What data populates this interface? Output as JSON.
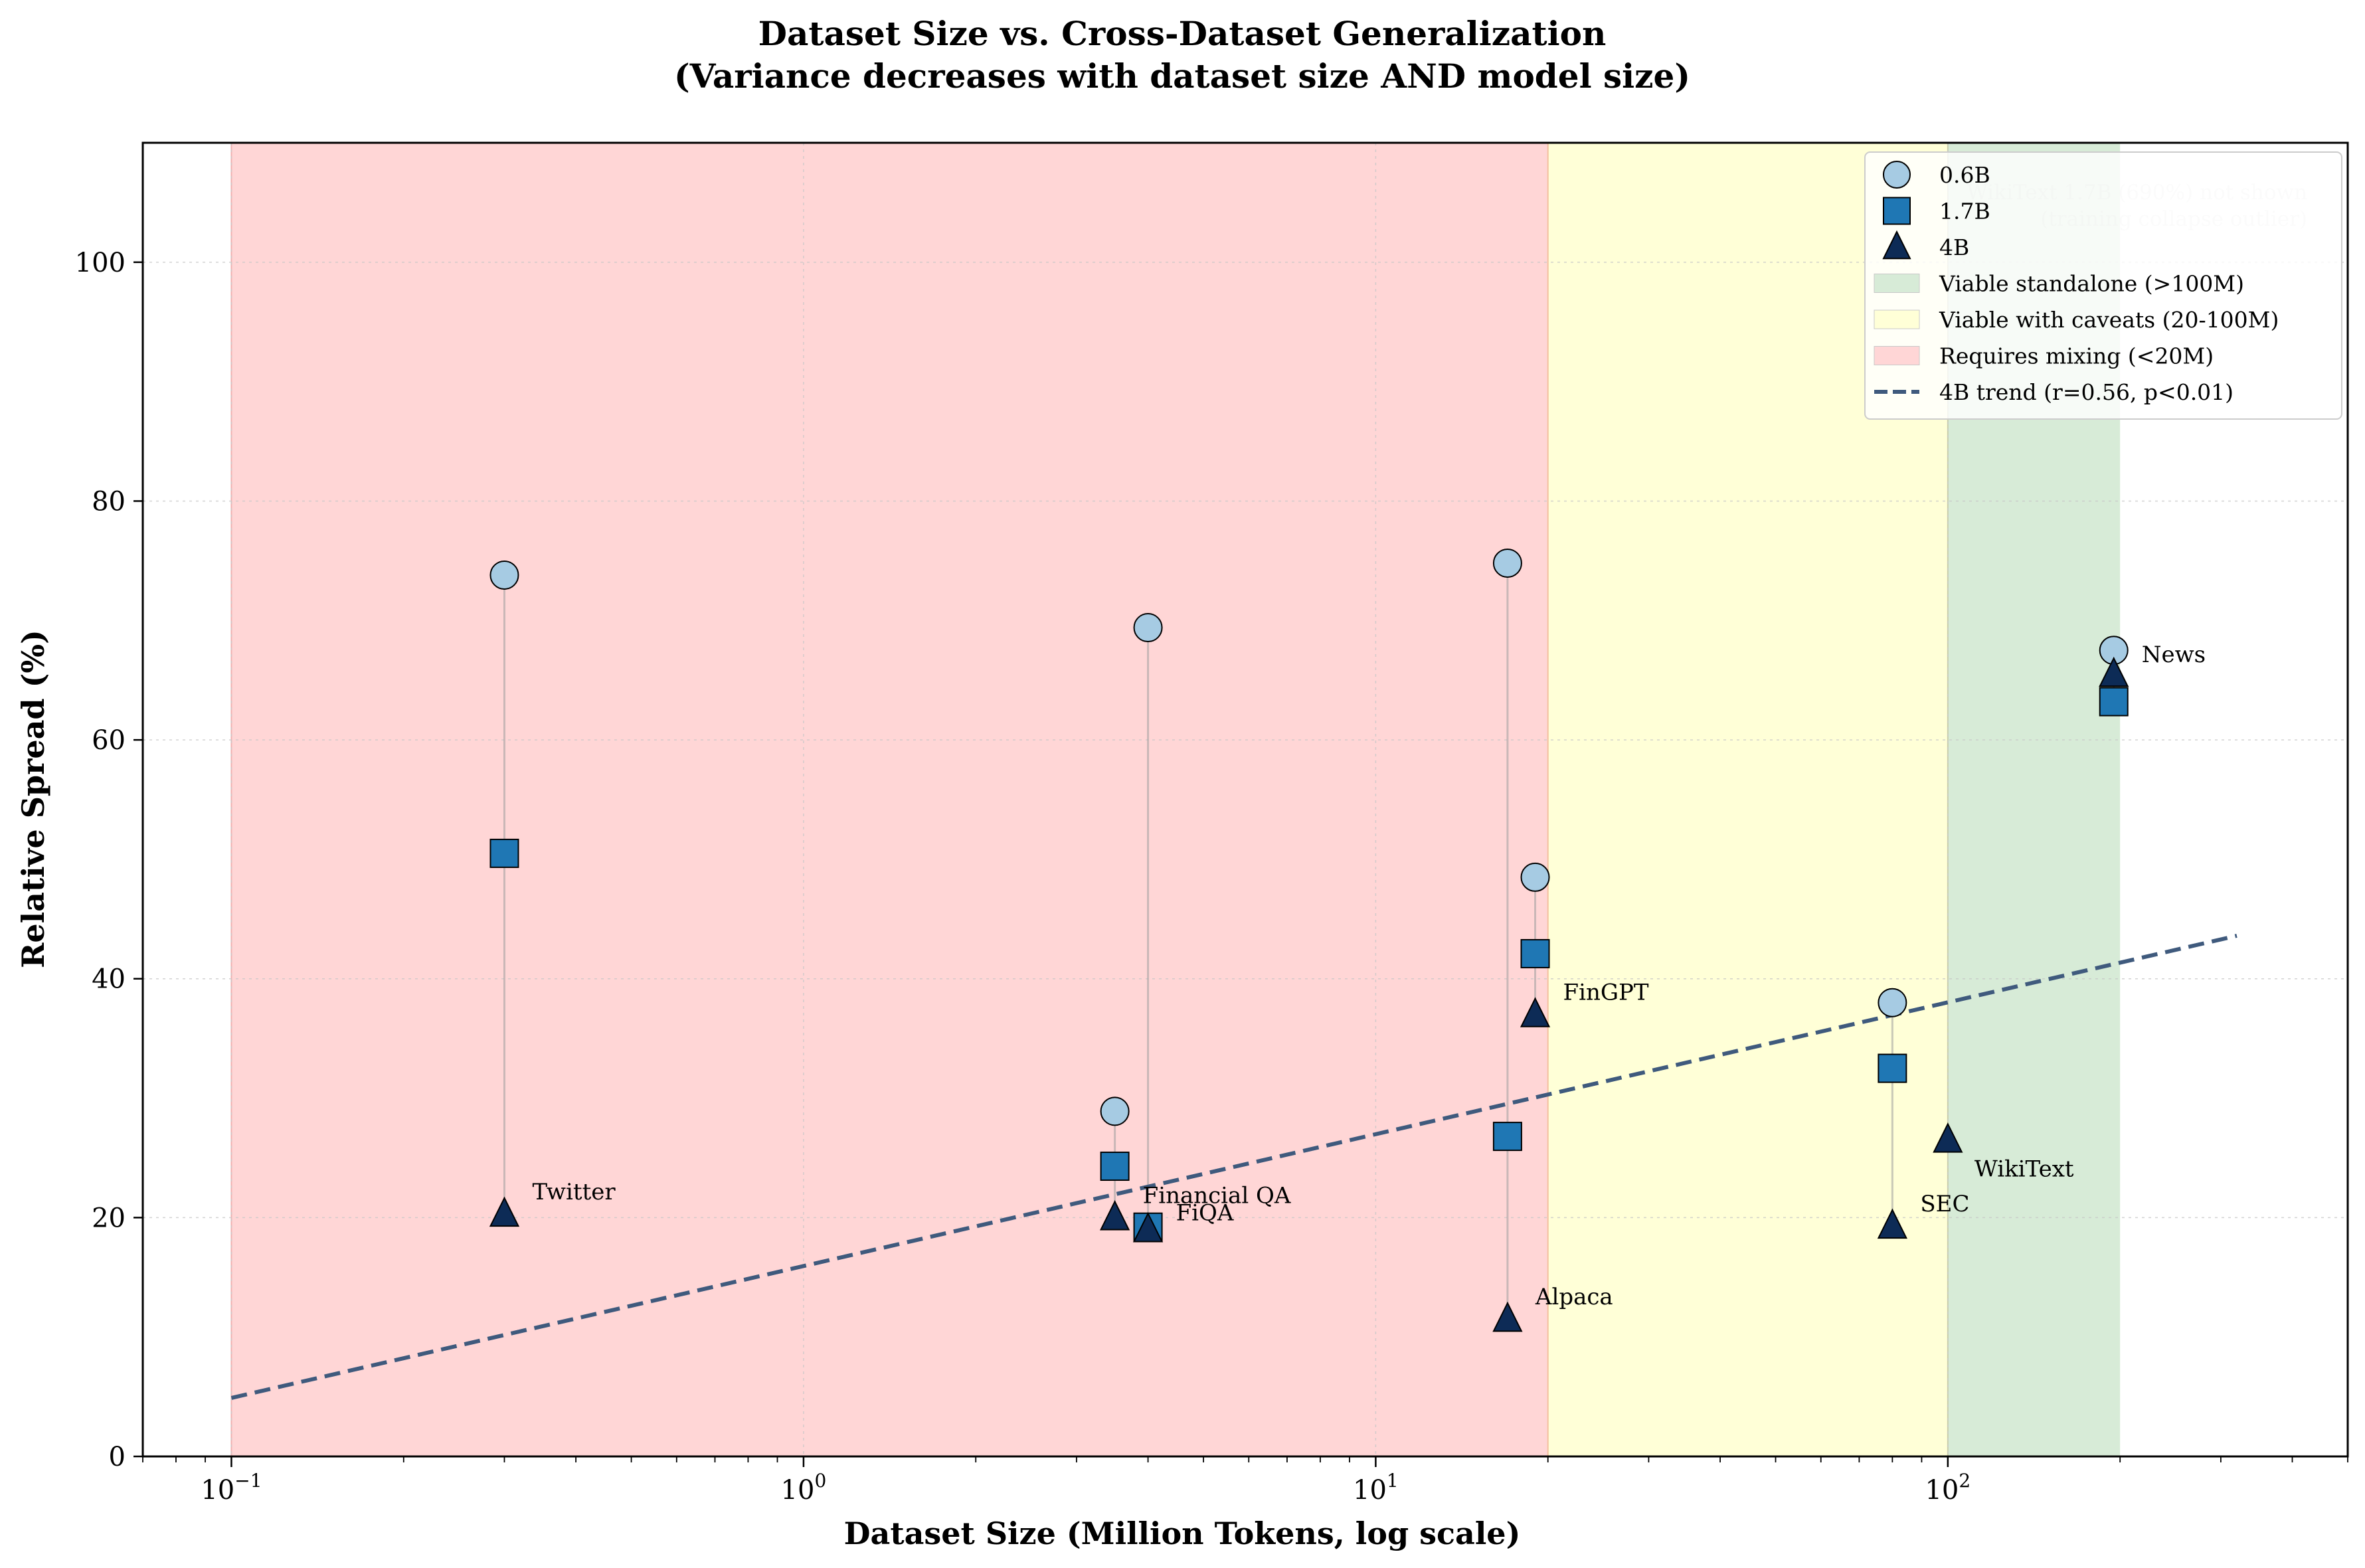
{
  "chart_data": {
    "type": "scatter",
    "title": "Dataset Size vs. Cross-Dataset Generalization",
    "subtitle": "(Variance decreases with dataset size AND model size)",
    "xlabel": "Dataset Size (Million Tokens, log scale)",
    "ylabel": "Relative Spread (%)",
    "x_scale": "log",
    "xlim": [
      0.07,
      500
    ],
    "ylim": [
      0,
      110
    ],
    "x_ticks": [
      {
        "value": 0.1,
        "base": "10",
        "exp": "−1"
      },
      {
        "value": 1,
        "base": "10",
        "exp": "0"
      },
      {
        "value": 10,
        "base": "10",
        "exp": "1"
      },
      {
        "value": 100,
        "base": "10",
        "exp": "2"
      }
    ],
    "y_ticks": [
      0,
      20,
      40,
      60,
      80,
      100
    ],
    "grid": true,
    "legend_position": "top-right",
    "regions": [
      {
        "name": "Requires mixing (<20M)",
        "x": [
          0.1,
          20
        ],
        "color": "#ffd6d6"
      },
      {
        "name": "Viable with caveats (20-100M)",
        "x": [
          20,
          100
        ],
        "color": "#ffffd7"
      },
      {
        "name": "Viable standalone (>100M)",
        "x": [
          100,
          200
        ],
        "color": "#d7ebd7"
      }
    ],
    "series": [
      {
        "name": "0.6B",
        "marker": "circle",
        "color": "#a6cbe3",
        "points": [
          {
            "x": 0.3,
            "y": 73.8
          },
          {
            "x": 3.5,
            "y": 28.9
          },
          {
            "x": 4.0,
            "y": 69.4
          },
          {
            "x": 17,
            "y": 74.8
          },
          {
            "x": 19,
            "y": 48.5
          },
          {
            "x": 80,
            "y": 38.0
          },
          {
            "x": 195,
            "y": 67.5
          }
        ]
      },
      {
        "name": "1.7B",
        "marker": "square",
        "color": "#1f77b4",
        "points": [
          {
            "x": 0.3,
            "y": 50.5
          },
          {
            "x": 3.5,
            "y": 24.3
          },
          {
            "x": 4.0,
            "y": 19.2
          },
          {
            "x": 17,
            "y": 26.8
          },
          {
            "x": 19,
            "y": 42.1
          },
          {
            "x": 80,
            "y": 32.5
          },
          {
            "x": 195,
            "y": 63.2
          }
        ]
      },
      {
        "name": "4B",
        "marker": "triangle",
        "color": "#0d2b56",
        "points": [
          {
            "x": 0.3,
            "y": 20.3,
            "label": "Twitter"
          },
          {
            "x": 3.5,
            "y": 20.0,
            "label": "Financial QA"
          },
          {
            "x": 4.0,
            "y": 19.0,
            "label": "FiQA"
          },
          {
            "x": 17,
            "y": 11.5,
            "label": "Alpaca"
          },
          {
            "x": 19,
            "y": 37.0,
            "label": "FinGPT"
          },
          {
            "x": 80,
            "y": 19.3,
            "label": "SEC"
          },
          {
            "x": 100,
            "y": 26.5,
            "label": "WikiText"
          },
          {
            "x": 195,
            "y": 65.5,
            "label": "News"
          }
        ]
      }
    ],
    "trend": {
      "name": "4B trend (r=0.56, p<0.01)",
      "color": "#3f5a7d",
      "x": [
        0.1,
        320
      ],
      "y": [
        4.9,
        43.6
      ]
    },
    "note_lines": [
      "WikiText 1.7B (690%) not shown",
      "(training collapse outlier)"
    ],
    "legend": [
      {
        "label": "0.6B",
        "kind": "circle",
        "color": "#a6cbe3"
      },
      {
        "label": "1.7B",
        "kind": "square",
        "color": "#1f77b4"
      },
      {
        "label": "4B",
        "kind": "triangle",
        "color": "#0d2b56"
      },
      {
        "label": "Viable standalone (>100M)",
        "kind": "patch",
        "color": "#d7ebd7"
      },
      {
        "label": "Viable with caveats (20-100M)",
        "kind": "patch",
        "color": "#ffffd7"
      },
      {
        "label": "Requires mixing (<20M)",
        "kind": "patch",
        "color": "#ffd6d6"
      },
      {
        "label": "4B trend (r=0.56, p<0.01)",
        "kind": "dashed",
        "color": "#3f5a7d"
      }
    ]
  }
}
